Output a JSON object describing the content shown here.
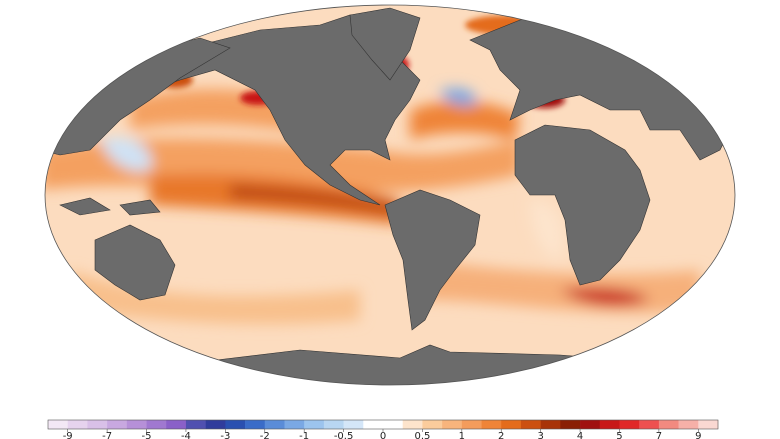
{
  "colorbar": {
    "colors": [
      "#f3e8f5",
      "#e6d3ee",
      "#d9c0e8",
      "#c8a8e0",
      "#b690d8",
      "#a078d0",
      "#8a60c8",
      "#5050b0",
      "#303c9c",
      "#2a50b0",
      "#3a6cc8",
      "#5a8cd8",
      "#7aa8e4",
      "#9cc4ee",
      "#b8d6f2",
      "#d4e6f8",
      "#ffffff",
      "#ffffff",
      "#fde4cc",
      "#fbcc9c",
      "#f8b47c",
      "#f49c5c",
      "#ef8438",
      "#e46c1c",
      "#cc5010",
      "#a83408",
      "#8a2004",
      "#a01010",
      "#c81818",
      "#e02828",
      "#ee5050",
      "#f28a80",
      "#f6b0a8",
      "#fad8d2"
    ],
    "ticks": [
      -9,
      -7,
      -5,
      -4,
      -3,
      -2,
      -1,
      -0.5,
      0,
      0.5,
      1,
      2,
      3,
      4,
      5,
      7,
      9
    ]
  }
}
